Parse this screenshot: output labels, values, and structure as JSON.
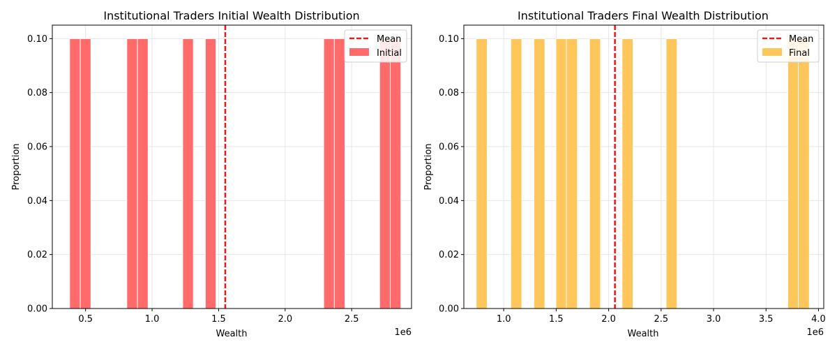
{
  "chart_data": [
    {
      "type": "bar",
      "title": "Institutional Traders Initial Wealth Distribution",
      "xlabel": "Wealth",
      "ylabel": "Proportion",
      "x_offset_label": "1e6",
      "xlim": [
        0.25,
        2.95
      ],
      "ylim": [
        0,
        0.105
      ],
      "xticks": [
        0.5,
        1.0,
        1.5,
        2.0,
        2.5
      ],
      "xtick_labels": [
        "0.5",
        "1.0",
        "1.5",
        "2.0",
        "2.5"
      ],
      "yticks": [
        0.0,
        0.02,
        0.04,
        0.06,
        0.08,
        0.1
      ],
      "ytick_labels": [
        "0.00",
        "0.02",
        "0.04",
        "0.06",
        "0.08",
        "0.10"
      ],
      "bin_width": 0.08,
      "series": [
        {
          "name": "Initial",
          "color": "#ff6b6b",
          "bins": [
            {
              "x": 0.42,
              "value": 0.1
            },
            {
              "x": 0.5,
              "value": 0.1
            },
            {
              "x": 0.85,
              "value": 0.1
            },
            {
              "x": 0.93,
              "value": 0.1
            },
            {
              "x": 1.27,
              "value": 0.1
            },
            {
              "x": 1.44,
              "value": 0.1
            },
            {
              "x": 2.33,
              "value": 0.1
            },
            {
              "x": 2.41,
              "value": 0.1
            },
            {
              "x": 2.75,
              "value": 0.1
            },
            {
              "x": 2.83,
              "value": 0.1
            }
          ]
        }
      ],
      "mean": {
        "name": "Mean",
        "value": 1.55,
        "color": "#e41a1c"
      },
      "grid": true,
      "legend_position": "top-right"
    },
    {
      "type": "bar",
      "title": "Institutional Traders Final Wealth Distribution",
      "xlabel": "Wealth",
      "ylabel": "Proportion",
      "x_offset_label": "1e6",
      "xlim": [
        0.62,
        4.05
      ],
      "ylim": [
        0,
        0.105
      ],
      "xticks": [
        1.0,
        1.5,
        2.0,
        2.5,
        3.0,
        3.5,
        4.0
      ],
      "xtick_labels": [
        "1.0",
        "1.5",
        "2.0",
        "2.5",
        "3.0",
        "3.5",
        "4.0"
      ],
      "yticks": [
        0.0,
        0.02,
        0.04,
        0.06,
        0.08,
        0.1
      ],
      "ytick_labels": [
        "0.00",
        "0.02",
        "0.04",
        "0.06",
        "0.08",
        "0.10"
      ],
      "bin_width": 0.105,
      "series": [
        {
          "name": "Final",
          "color": "#ffc65c",
          "bins": [
            {
              "x": 0.79,
              "value": 0.1
            },
            {
              "x": 1.12,
              "value": 0.1
            },
            {
              "x": 1.34,
              "value": 0.1
            },
            {
              "x": 1.55,
              "value": 0.1
            },
            {
              "x": 1.65,
              "value": 0.1
            },
            {
              "x": 1.87,
              "value": 0.1
            },
            {
              "x": 2.18,
              "value": 0.1
            },
            {
              "x": 2.6,
              "value": 0.1
            },
            {
              "x": 3.76,
              "value": 0.1
            },
            {
              "x": 3.86,
              "value": 0.1
            }
          ]
        }
      ],
      "mean": {
        "name": "Mean",
        "value": 2.06,
        "color": "#e41a1c"
      },
      "grid": true,
      "legend_position": "top-right"
    }
  ]
}
